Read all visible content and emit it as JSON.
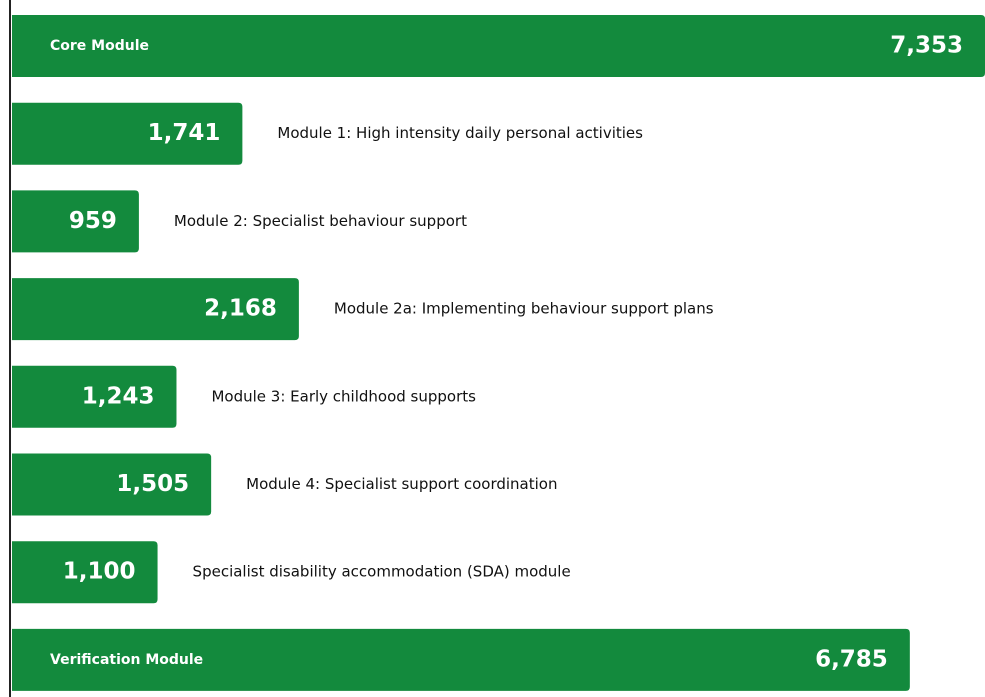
{
  "chart_data": {
    "type": "bar",
    "orientation": "horizontal",
    "categories": [
      "Core Module",
      "Module 1: High intensity daily personal activities",
      "Module 2: Specialist behaviour support",
      "Module 2a: Implementing behaviour support plans",
      "Module 3: Early childhood supports",
      "Module 4: Specialist support coordination",
      "Specialist disability accommodation (SDA) module",
      "Verification Module"
    ],
    "values": [
      7353,
      1741,
      959,
      2168,
      1243,
      1505,
      1100,
      6785
    ],
    "value_labels": [
      "7,353",
      "1,741",
      "959",
      "2,168",
      "1,243",
      "1,505",
      "1,100",
      "6,785"
    ],
    "color": "#138a3d"
  }
}
